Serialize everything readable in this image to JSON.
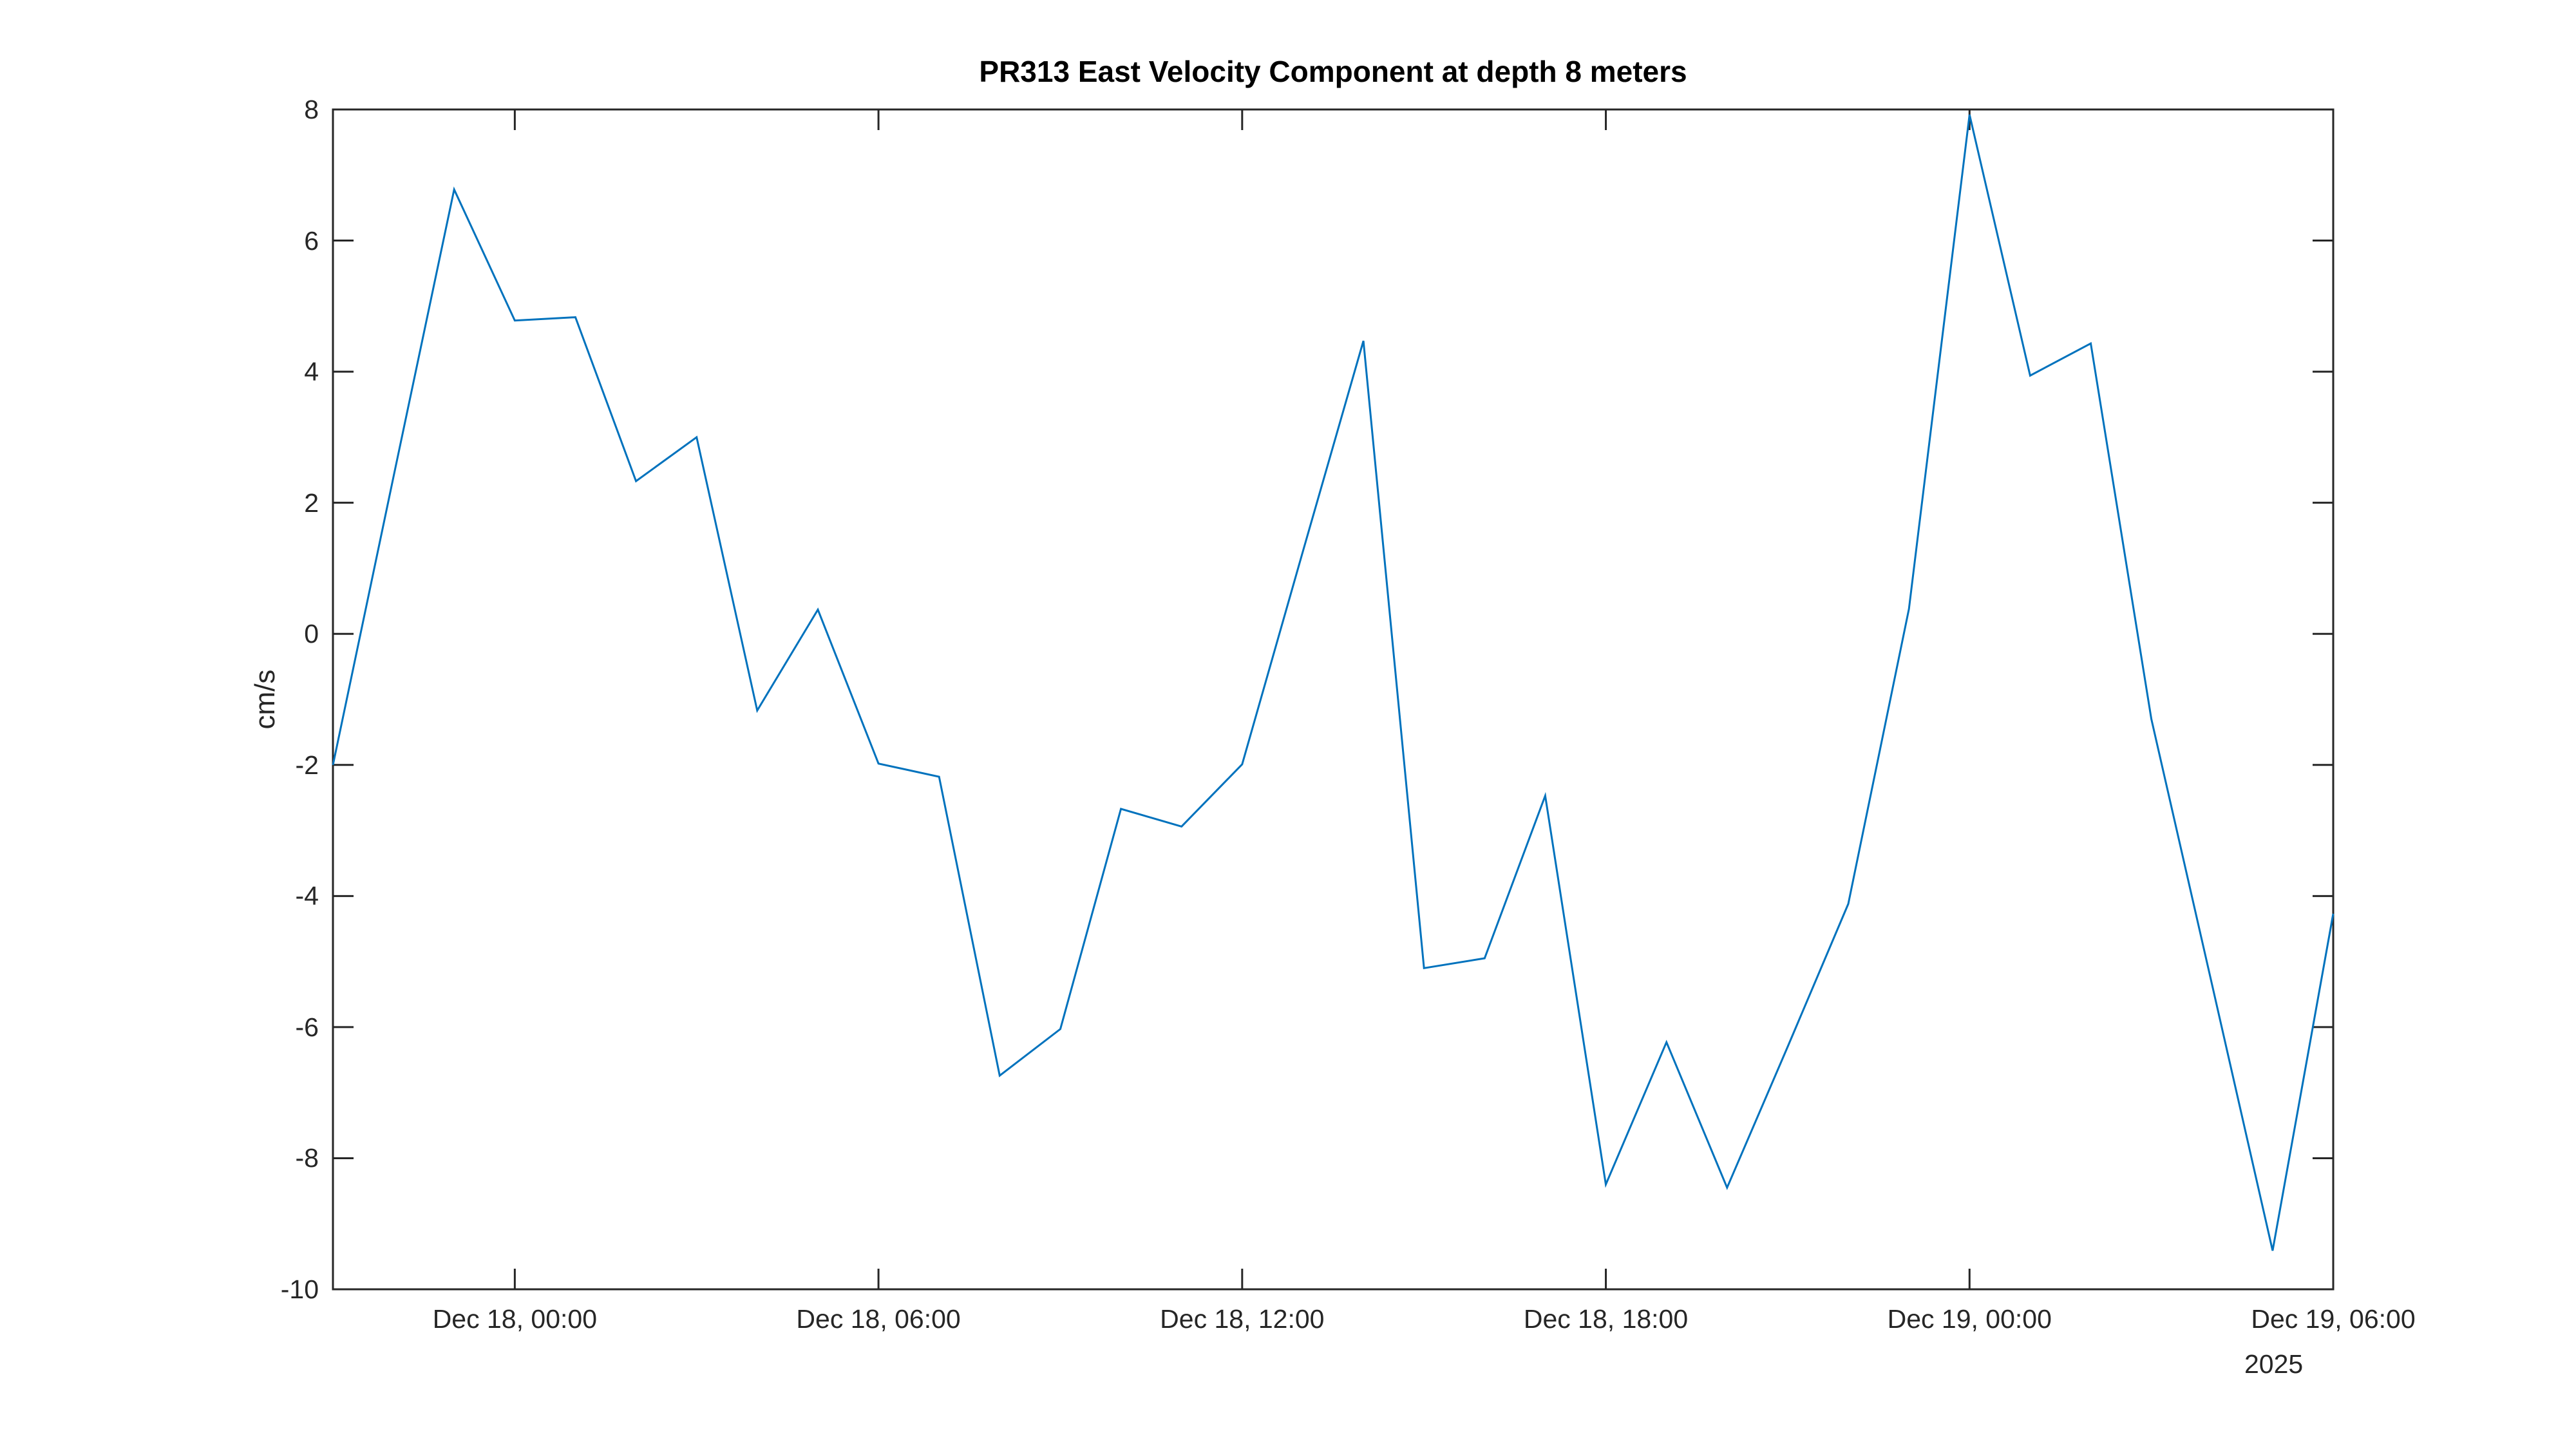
{
  "page": {
    "background": "#ffffff"
  },
  "chart_data": {
    "type": "line",
    "title": "PR313 East Velocity Component at depth 8 meters",
    "xlabel": "",
    "ylabel": "cm/s",
    "ylim": [
      -10,
      8
    ],
    "ytick_step": 2,
    "grid": false,
    "legend": null,
    "frame_style": "box with inward tick marks on all four sides",
    "line_color": "#0072BD",
    "axis_color": "#262626",
    "title_color": "#000000",
    "year_label": "2025",
    "ytick_labels": [
      "8",
      "6",
      "4",
      "2",
      "0",
      "-2",
      "-4",
      "-6",
      "-8",
      "-10"
    ],
    "ytick_values": [
      8,
      6,
      4,
      2,
      0,
      -2,
      -4,
      -6,
      -8,
      -10
    ],
    "xticks": [
      {
        "hour": 3,
        "label": "Dec 18, 00:00"
      },
      {
        "hour": 9,
        "label": "Dec 18, 06:00"
      },
      {
        "hour": 15,
        "label": "Dec 18, 12:00"
      },
      {
        "hour": 21,
        "label": "Dec 18, 18:00"
      },
      {
        "hour": 27,
        "label": "Dec 19, 00:00"
      },
      {
        "hour": 33,
        "label": "Dec 19, 06:00"
      }
    ],
    "series": [
      {
        "name": "east-velocity-cm-per-s",
        "start_time": "Dec 17, 21:00",
        "end_time": "Dec 19, 06:00",
        "interval_hours": 1,
        "x_hours": [
          0,
          1,
          2,
          3,
          4,
          5,
          6,
          7,
          8,
          9,
          10,
          11,
          12,
          13,
          14,
          15,
          16,
          17,
          18,
          19,
          20,
          21,
          22,
          23,
          24,
          25,
          26,
          27,
          28,
          29,
          30,
          31,
          32,
          33
        ],
        "values": [
          -2.0,
          2.4,
          6.78,
          4.78,
          4.83,
          2.33,
          3.0,
          -1.17,
          0.37,
          -1.98,
          -2.18,
          -6.74,
          -6.03,
          -2.67,
          -2.94,
          -1.99,
          1.25,
          4.47,
          -5.1,
          -4.95,
          -2.47,
          -8.4,
          -6.23,
          -8.45,
          -6.3,
          -4.12,
          0.38,
          7.92,
          3.94,
          4.43,
          -1.3,
          -5.35,
          -9.41,
          -4.27
        ]
      }
    ]
  }
}
